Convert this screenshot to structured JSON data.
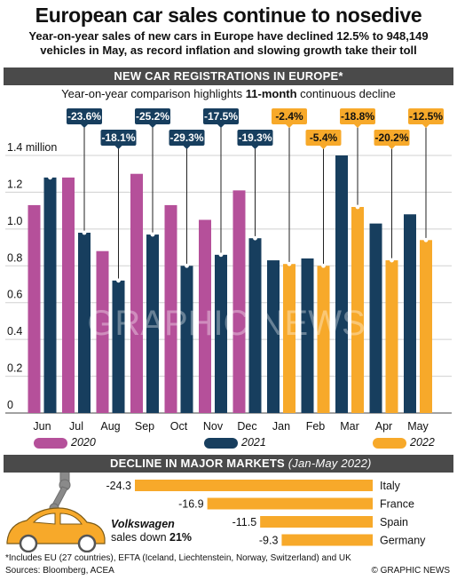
{
  "title": "European car sales continue to nosedive",
  "subtitle": "Year-on-year sales of new cars in Europe have declined 12.5% to 948,149 vehicles in May, as record inflation and slowing growth take their toll",
  "section1_header": "NEW CAR REGISTRATIONS IN EUROPE*",
  "chart_subtitle_pre": "Year-on-year comparison highlights ",
  "chart_subtitle_bold": "11-month",
  "chart_subtitle_post": " continuous decline",
  "colors": {
    "y2020": "#b5509a",
    "y2021": "#173e5e",
    "y2022": "#f7a92a",
    "header": "#4a4a4a"
  },
  "chart_data": {
    "type": "bar",
    "categories": [
      "Jun",
      "Jul",
      "Aug",
      "Sep",
      "Oct",
      "Nov",
      "Dec",
      "Jan",
      "Feb",
      "Mar",
      "Apr",
      "May"
    ],
    "ylim": [
      0,
      1.4
    ],
    "yticks": [
      0,
      0.2,
      0.4,
      0.6,
      0.8,
      1.0,
      1.2,
      1.4
    ],
    "ytick_labels": [
      "0",
      "0.2",
      "0.4",
      "0.6",
      "0.8",
      "1.0",
      "1.2",
      "1.4 million"
    ],
    "series": [
      {
        "name": "2020",
        "values": [
          1.13,
          1.28,
          0.88,
          1.3,
          1.13,
          1.05,
          1.21,
          null,
          null,
          null,
          null,
          null
        ]
      },
      {
        "name": "2021",
        "values": [
          1.28,
          0.98,
          0.72,
          0.97,
          0.8,
          0.86,
          0.95,
          0.83,
          0.84,
          1.4,
          1.03,
          1.08
        ]
      },
      {
        "name": "2022",
        "values": [
          null,
          null,
          null,
          null,
          null,
          null,
          null,
          0.81,
          0.8,
          1.12,
          0.83,
          0.94
        ]
      }
    ],
    "changes": [
      "-23.6%",
      "-18.1%",
      "-25.2%",
      "-29.3%",
      "-17.5%",
      "-19.3%",
      "-2.4%",
      "-5.4%",
      "-18.8%",
      "-20.2%",
      "-12.5%"
    ],
    "legend": [
      "2020",
      "2021",
      "2022"
    ]
  },
  "section2_header": "DECLINE IN MAJOR MARKETS",
  "section2_period": "(Jan-May 2022)",
  "markets": [
    {
      "country": "Italy",
      "value": -24.3,
      "label": "-24.3"
    },
    {
      "country": "France",
      "value": -16.9,
      "label": "-16.9"
    },
    {
      "country": "Spain",
      "value": -11.5,
      "label": "-11.5"
    },
    {
      "country": "Germany",
      "value": -9.3,
      "label": "-9.3"
    }
  ],
  "vw_brand": "Volkswagen",
  "vw_text": "sales down ",
  "vw_value": "21%",
  "footnote": "*Includes EU (27 countries), EFTA (Iceland, Liechtenstein, Norway, Switzerland) and UK",
  "sources": "Sources: Bloomberg, ACEA",
  "copyright": "© GRAPHIC NEWS",
  "watermark": "GRAPHIC NEWS"
}
